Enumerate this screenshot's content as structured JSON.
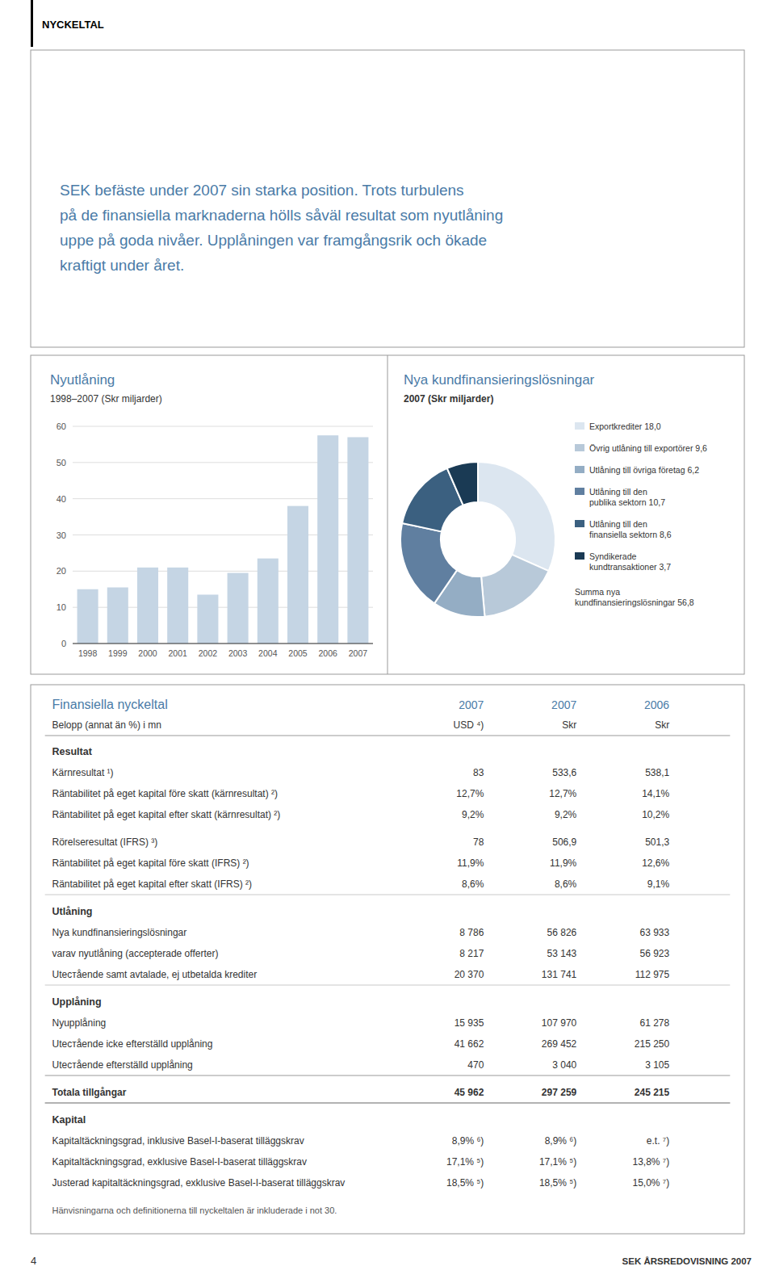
{
  "chart_data": [
    {
      "type": "bar",
      "title": "Nyutlåning",
      "subtitle": "1998–2007 (Skr miljarder)",
      "categories": [
        "1998",
        "1999",
        "2000",
        "2001",
        "2002",
        "2003",
        "2004",
        "2005",
        "2006",
        "2007"
      ],
      "values": [
        15.0,
        15.5,
        21.0,
        21.0,
        13.5,
        19.5,
        23.5,
        38.0,
        57.5,
        57.0
      ],
      "color": "#c5d5e4",
      "ylim": [
        0,
        60
      ],
      "yticks": [
        0,
        10,
        20,
        30,
        40,
        50,
        60
      ],
      "grid": true
    },
    {
      "type": "pie",
      "title": "Nya kundfinansieringslösningar",
      "subtitle": "2007 (Skr miljarder)",
      "categories": [
        "Exportkrediter 18,0",
        "Övrig utlåning till exportörer 9,6",
        "Utlåning till övriga företag 6,2",
        "Utlåning till den\npublika sektorn 10,7",
        "Utlåning till den\nfinansiella sektorn 8,6",
        "Syndikerade\nkundtransaktioner 3,7"
      ],
      "values": [
        18.0,
        9.6,
        6.2,
        10.7,
        8.6,
        3.7
      ],
      "colors": [
        "#dce6f0",
        "#b8c9d9",
        "#94adc4",
        "#607fa0",
        "#3b6080",
        "#1a3a54"
      ],
      "legend": "right",
      "annotations": [
        "Summa nya\nkundfinansieringslösningar 56,8"
      ]
    }
  ],
  "page": {
    "title": "NYCKELTAL",
    "intro": [
      "SEK befäste under 2007 sin starka position. Trots turbulens",
      "på de finansiella marknaderna hölls såväl resultat som nyutlåning",
      "uppe på goda nivåer. Upplåningen var framgångsrik och ökade",
      "kraftigt under året."
    ],
    "table": {
      "title": "Finansiella nyckeltal",
      "columns": [
        "2007",
        "2007",
        "2006"
      ],
      "subtitle": "Belopp (annat än %) i mn",
      "units": [
        "USD ⁴)",
        "Skr",
        "Skr"
      ],
      "blocks": [
        {
          "title": "Resultat",
          "rows": [
            [
              "Kärnresultat ¹)",
              "83",
              "533,6",
              "538,1"
            ],
            [
              "Räntabilitet på eget kapital före skatt (kärnresultat) ²)",
              "12,7%",
              "12,7%",
              "14,1%"
            ],
            [
              "Räntabilitet på eget kapital efter skatt (kärnresultat) ²)",
              "9,2%",
              "9,2%",
              "10,2%"
            ]
          ]
        },
        {
          "rows": [
            [
              "Rörelseresultat (IFRS) ³)",
              "78",
              "506,9",
              "501,3"
            ],
            [
              "Räntabilitet på eget kapital före skatt (IFRS) ²)",
              "11,9%",
              "11,9%",
              "12,6%"
            ],
            [
              "Räntabilitet på eget kapital efter skatt (IFRS) ²)",
              "8,6%",
              "8,6%",
              "9,1%"
            ]
          ]
        },
        {
          "title": "Utlåning",
          "rows": [
            [
              "Nya kundfinansieringslösningar",
              "8 786",
              "56 826",
              "63 933"
            ],
            [
              "varav nyutlåning (accepterade offerter)",
              "8 217",
              "53 143",
              "56 923"
            ],
            [
              "Utестående samt avtalade, ej utbetalda krediter",
              "20 370",
              "131 741",
              "112 975"
            ]
          ]
        },
        {
          "title": "Upplåning",
          "rows": [
            [
              "Nyupplåning",
              "15 935",
              "107 970",
              "61 278"
            ],
            [
              "Utестående icke efterställd upplåning",
              "41 662",
              "269 452",
              "215 250"
            ],
            [
              "Utестående efterställd upplåning",
              "470",
              "3 040",
              "3 105"
            ]
          ]
        },
        {
          "bold": true,
          "rows": [
            [
              "Totala tillgångar",
              "45 962",
              "297 259",
              "245 215"
            ]
          ]
        },
        {
          "title": "Kapital",
          "rows": [
            [
              "Kapitaltäckningsgrad, inklusive Basel-I-baserat tilläggskrav",
              "8,9% ⁶)",
              "8,9% ⁶)",
              "e.t. ⁷)"
            ],
            [
              "Kapitaltäckningsgrad, exklusive Basel-I-baserat tilläggskrav",
              "17,1% ⁵)",
              "17,1% ⁵)",
              "13,8% ⁷)"
            ],
            [
              "Justerad kapitaltäckningsgrad, exklusive Basel-I-baserat tilläggskrav",
              "18,5% ⁵)",
              "18,5% ⁵)",
              "15,0% ⁷)"
            ]
          ]
        }
      ],
      "note": "Hänvisningarna och definitionerna till nyckeltalen är inkluderade i not 30."
    },
    "footer_left": "4",
    "footer_right": "SEK ÅRSREDOVISNING 2007"
  }
}
